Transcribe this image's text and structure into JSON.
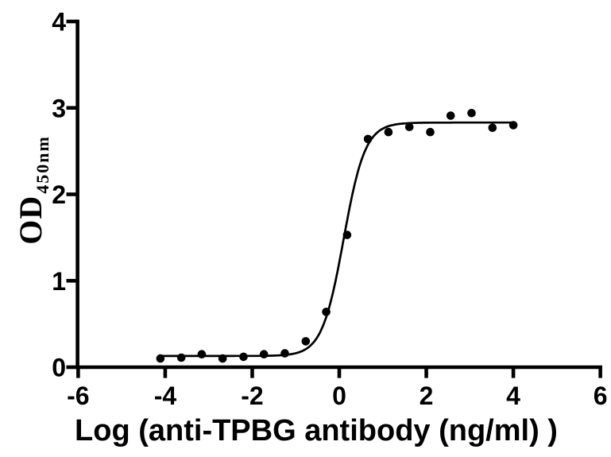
{
  "figure": {
    "background": "#ffffff",
    "ink_color": "#000000"
  },
  "chart_data": {
    "type": "scatter",
    "title": "",
    "xlabel": "Log (anti-TPBG antibody (ng/ml) )",
    "ylabel_main": "OD",
    "ylabel_sub": "450nm",
    "xlim": [
      -6,
      6
    ],
    "ylim": [
      0,
      4
    ],
    "x_ticks": [
      -6,
      -4,
      -2,
      0,
      2,
      4,
      6
    ],
    "y_ticks": [
      0,
      1,
      2,
      3,
      4
    ],
    "grid": false,
    "legend_position": "none",
    "marker": {
      "shape": "filled-circle",
      "color": "#000000"
    },
    "points": {
      "x": [
        -4.11,
        -3.63,
        -3.16,
        -2.68,
        -2.2,
        -1.73,
        -1.25,
        -0.77,
        -0.3,
        0.18,
        0.66,
        1.13,
        1.61,
        2.09,
        2.56,
        3.04,
        3.52,
        4.0
      ],
      "y": [
        0.1,
        0.11,
        0.15,
        0.1,
        0.12,
        0.15,
        0.16,
        0.3,
        0.64,
        1.53,
        2.64,
        2.72,
        2.78,
        2.72,
        2.91,
        2.94,
        2.77,
        2.8
      ]
    },
    "fit_curve": {
      "model": "4PL sigmoid",
      "bottom": 0.13,
      "top": 2.83,
      "log_ec50": 0.1,
      "hill_slope": 1.75,
      "x_range": [
        -4.11,
        4.0
      ],
      "color": "#000000"
    }
  }
}
